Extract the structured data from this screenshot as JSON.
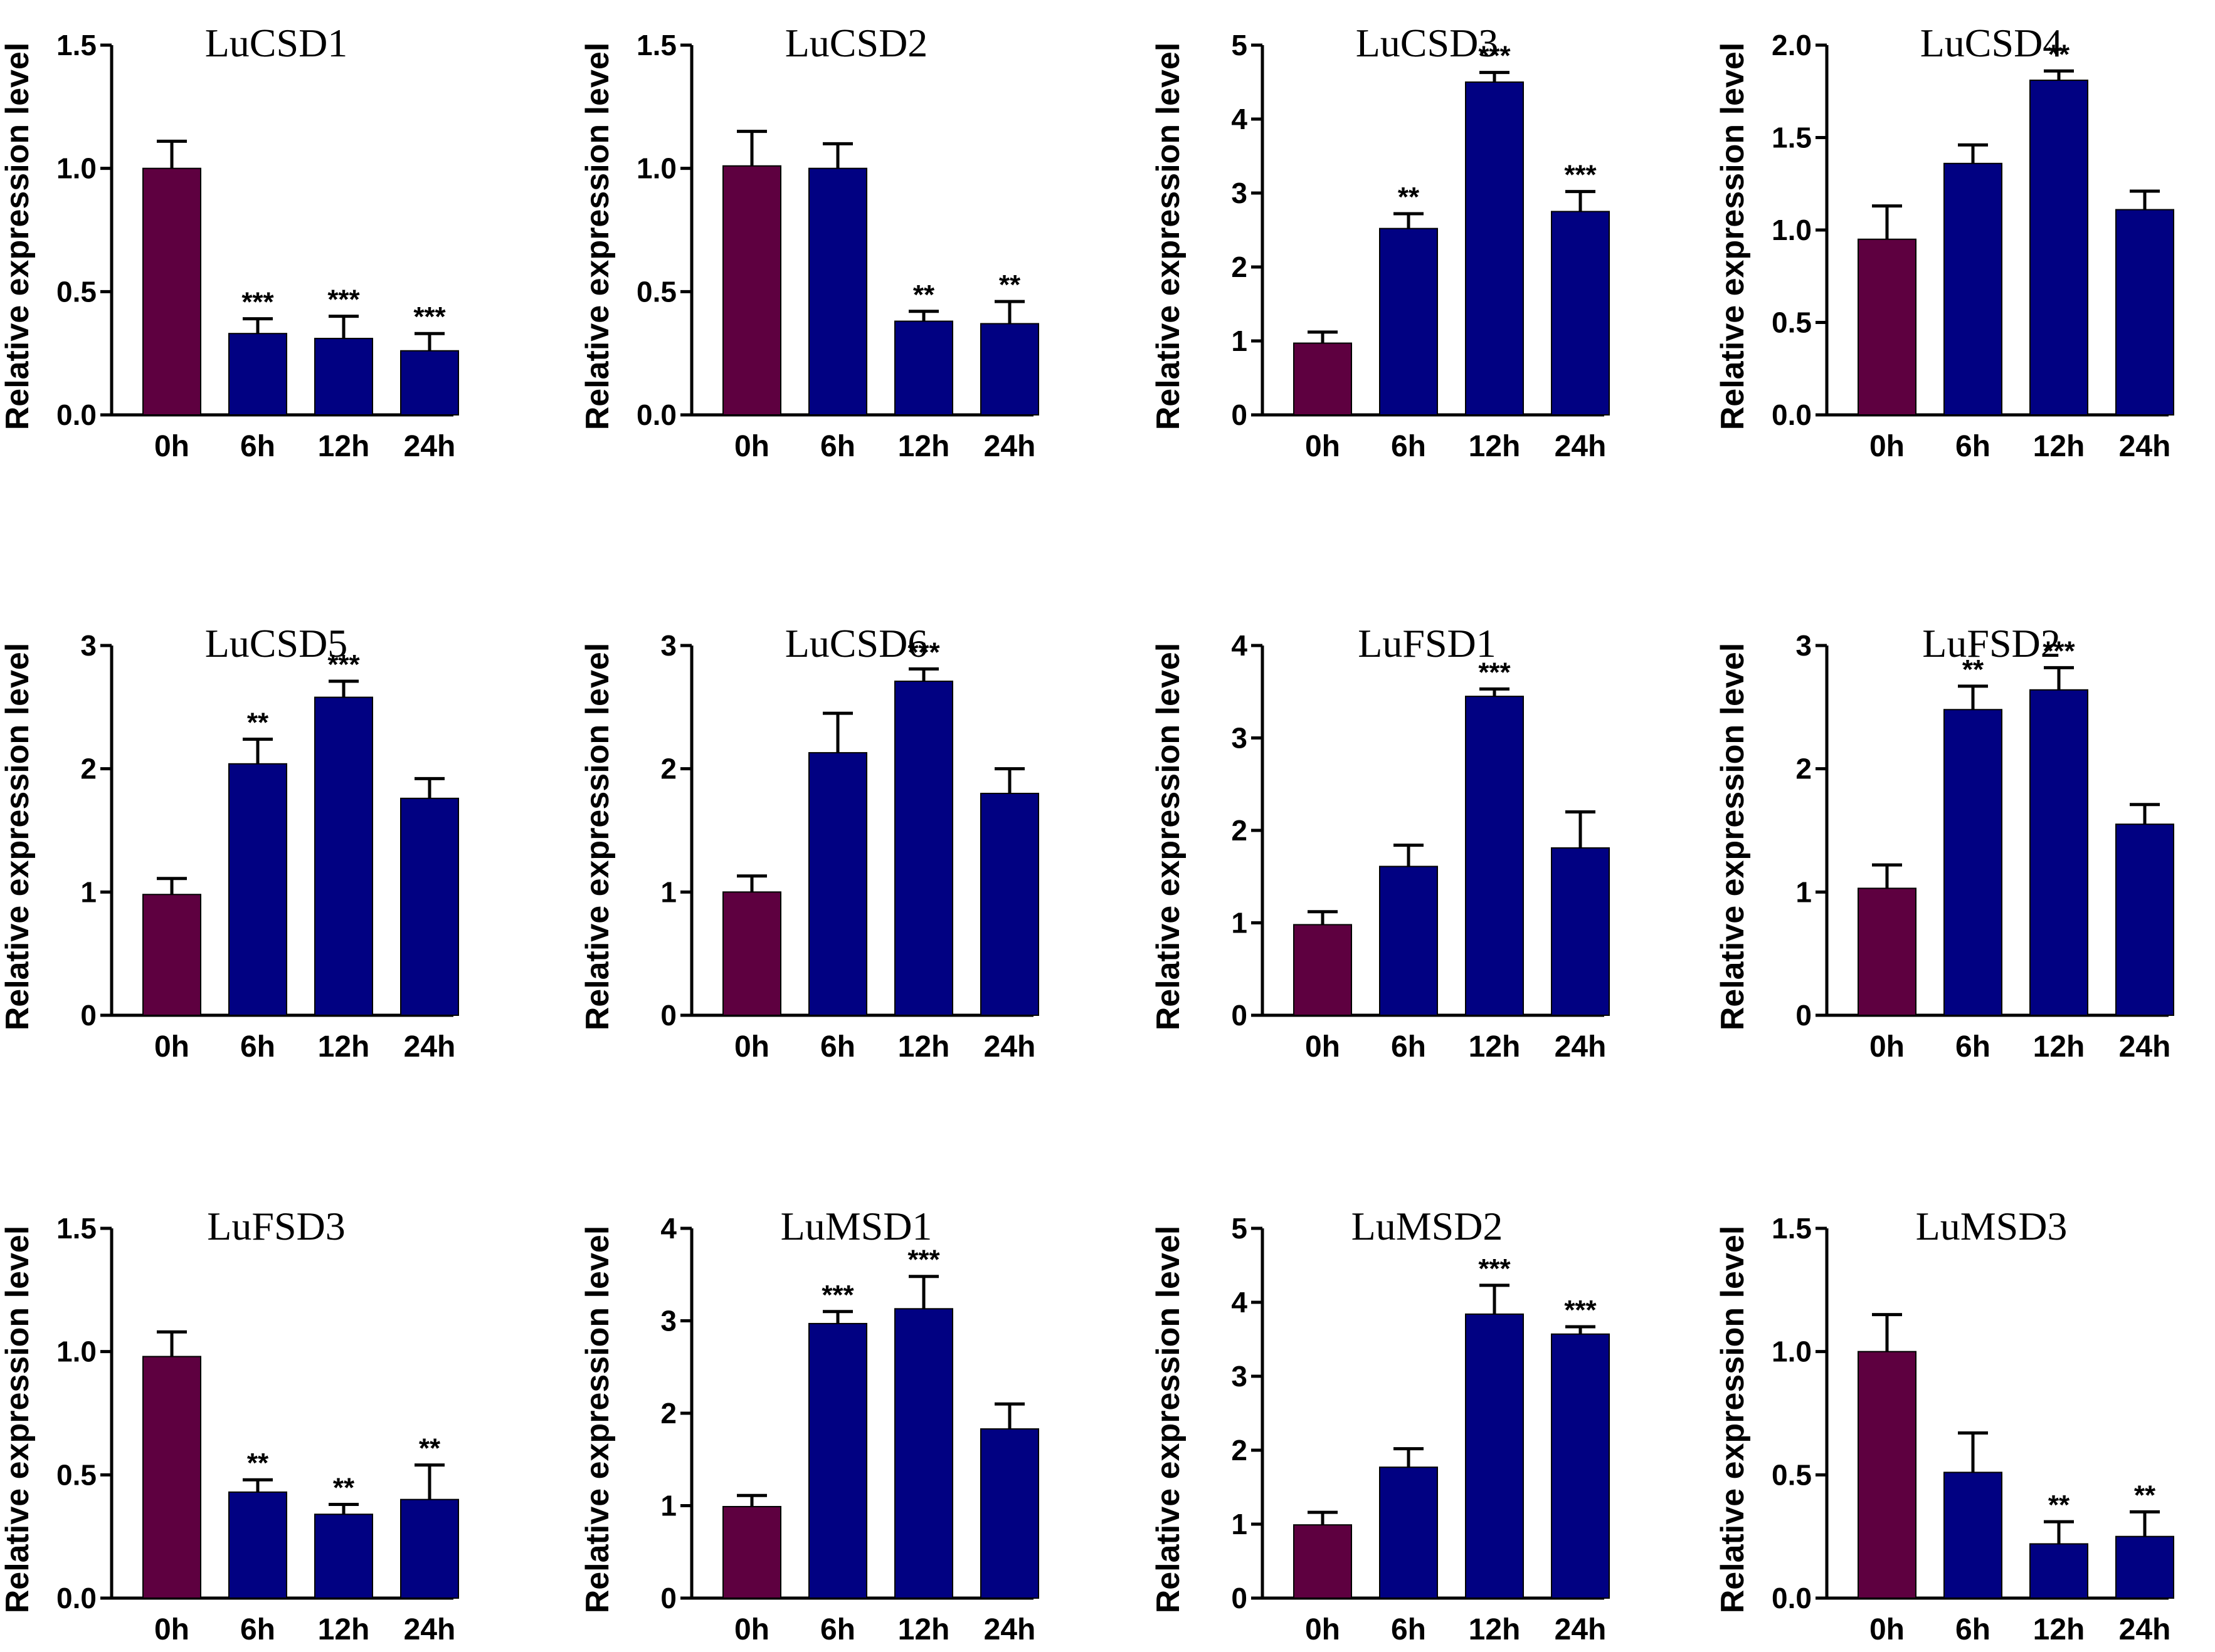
{
  "colors": {
    "control": "#5e0040",
    "treatment": "#010182",
    "axis": "#000000"
  },
  "chart_data": [
    {
      "type": "bar",
      "title": "LuCSD1",
      "ylabel": "Relative expression level",
      "xlabel": "",
      "categories": [
        "0h",
        "6h",
        "12h",
        "24h"
      ],
      "values": [
        1.0,
        0.33,
        0.31,
        0.26
      ],
      "errors": [
        0.11,
        0.06,
        0.09,
        0.07
      ],
      "significance": [
        "",
        "***",
        "***",
        "***"
      ],
      "ylim": [
        0,
        1.5
      ],
      "yticks": [
        0.0,
        0.5,
        1.0,
        1.5
      ],
      "ytick_labels": [
        "0.0",
        "0.5",
        "1.0",
        "1.5"
      ]
    },
    {
      "type": "bar",
      "title": "LuCSD2",
      "ylabel": "Relative expression level",
      "xlabel": "",
      "categories": [
        "0h",
        "6h",
        "12h",
        "24h"
      ],
      "values": [
        1.01,
        1.0,
        0.38,
        0.37
      ],
      "errors": [
        0.14,
        0.1,
        0.04,
        0.09
      ],
      "significance": [
        "",
        "",
        "**",
        "**"
      ],
      "ylim": [
        0,
        1.5
      ],
      "yticks": [
        0.0,
        0.5,
        1.0,
        1.5
      ],
      "ytick_labels": [
        "0.0",
        "0.5",
        "1.0",
        "1.5"
      ]
    },
    {
      "type": "bar",
      "title": "LuCSD3",
      "ylabel": "Relative expression level",
      "xlabel": "",
      "categories": [
        "0h",
        "6h",
        "12h",
        "24h"
      ],
      "values": [
        0.97,
        2.52,
        4.5,
        2.75
      ],
      "errors": [
        0.15,
        0.2,
        0.13,
        0.27
      ],
      "significance": [
        "",
        "**",
        "***",
        "***"
      ],
      "ylim": [
        0,
        5
      ],
      "yticks": [
        0,
        1,
        2,
        3,
        4,
        5
      ],
      "ytick_labels": [
        "0",
        "1",
        "2",
        "3",
        "4",
        "5"
      ]
    },
    {
      "type": "bar",
      "title": "LuCSD4",
      "ylabel": "Relative expression level",
      "xlabel": "",
      "categories": [
        "0h",
        "6h",
        "12h",
        "24h"
      ],
      "values": [
        0.95,
        1.36,
        1.81,
        1.11
      ],
      "errors": [
        0.18,
        0.1,
        0.05,
        0.1
      ],
      "significance": [
        "",
        "",
        "**",
        ""
      ],
      "ylim": [
        0,
        2.0
      ],
      "yticks": [
        0.0,
        0.5,
        1.0,
        1.5,
        2.0
      ],
      "ytick_labels": [
        "0.0",
        "0.5",
        "1.0",
        "1.5",
        "2.0"
      ]
    },
    {
      "type": "bar",
      "title": "LuCSD5",
      "ylabel": "Relative expression level",
      "xlabel": "",
      "categories": [
        "0h",
        "6h",
        "12h",
        "24h"
      ],
      "values": [
        0.98,
        2.04,
        2.58,
        1.76
      ],
      "errors": [
        0.13,
        0.2,
        0.13,
        0.16
      ],
      "significance": [
        "",
        "**",
        "***",
        ""
      ],
      "ylim": [
        0,
        3
      ],
      "yticks": [
        0,
        1,
        2,
        3
      ],
      "ytick_labels": [
        "0",
        "1",
        "2",
        "3"
      ]
    },
    {
      "type": "bar",
      "title": "LuCSD6",
      "ylabel": "Relative expression level",
      "xlabel": "",
      "categories": [
        "0h",
        "6h",
        "12h",
        "24h"
      ],
      "values": [
        1.0,
        2.13,
        2.71,
        1.8
      ],
      "errors": [
        0.13,
        0.32,
        0.1,
        0.2
      ],
      "significance": [
        "",
        "",
        "***",
        ""
      ],
      "ylim": [
        0,
        3
      ],
      "yticks": [
        0,
        1,
        2,
        3
      ],
      "ytick_labels": [
        "0",
        "1",
        "2",
        "3"
      ]
    },
    {
      "type": "bar",
      "title": "LuFSD1",
      "ylabel": "Relative expression level",
      "xlabel": "",
      "categories": [
        "0h",
        "6h",
        "12h",
        "24h"
      ],
      "values": [
        0.98,
        1.61,
        3.45,
        1.81
      ],
      "errors": [
        0.14,
        0.23,
        0.08,
        0.39
      ],
      "significance": [
        "",
        "",
        "***",
        ""
      ],
      "ylim": [
        0,
        4
      ],
      "yticks": [
        0,
        1,
        2,
        3,
        4
      ],
      "ytick_labels": [
        "0",
        "1",
        "2",
        "3",
        "4"
      ]
    },
    {
      "type": "bar",
      "title": "LuFSD2",
      "ylabel": "Relative expression level",
      "xlabel": "",
      "categories": [
        "0h",
        "6h",
        "12h",
        "24h"
      ],
      "values": [
        1.03,
        2.48,
        2.64,
        1.55
      ],
      "errors": [
        0.19,
        0.19,
        0.18,
        0.16
      ],
      "significance": [
        "",
        "**",
        "***",
        ""
      ],
      "ylim": [
        0,
        3
      ],
      "yticks": [
        0,
        1,
        2,
        3
      ],
      "ytick_labels": [
        "0",
        "1",
        "2",
        "3"
      ]
    },
    {
      "type": "bar",
      "title": "LuFSD3",
      "ylabel": "Relative expression level",
      "xlabel": "",
      "categories": [
        "0h",
        "6h",
        "12h",
        "24h"
      ],
      "values": [
        0.98,
        0.43,
        0.34,
        0.4
      ],
      "errors": [
        0.1,
        0.05,
        0.04,
        0.14
      ],
      "significance": [
        "",
        "**",
        "**",
        "**"
      ],
      "ylim": [
        0,
        1.5
      ],
      "yticks": [
        0.0,
        0.5,
        1.0,
        1.5
      ],
      "ytick_labels": [
        "0.0",
        "0.5",
        "1.0",
        "1.5"
      ]
    },
    {
      "type": "bar",
      "title": "LuMSD1",
      "ylabel": "Relative expression level",
      "xlabel": "",
      "categories": [
        "0h",
        "6h",
        "12h",
        "24h"
      ],
      "values": [
        0.99,
        2.97,
        3.13,
        1.83
      ],
      "errors": [
        0.12,
        0.13,
        0.35,
        0.27
      ],
      "significance": [
        "",
        "***",
        "***",
        ""
      ],
      "ylim": [
        0,
        4
      ],
      "yticks": [
        0,
        1,
        2,
        3,
        4
      ],
      "ytick_labels": [
        "0",
        "1",
        "2",
        "3",
        "4"
      ]
    },
    {
      "type": "bar",
      "title": "LuMSD2",
      "ylabel": "Relative expression level",
      "xlabel": "",
      "categories": [
        "0h",
        "6h",
        "12h",
        "24h"
      ],
      "values": [
        0.99,
        1.77,
        3.84,
        3.57
      ],
      "errors": [
        0.17,
        0.25,
        0.39,
        0.1
      ],
      "significance": [
        "",
        "",
        "***",
        "***"
      ],
      "ylim": [
        0,
        5
      ],
      "yticks": [
        0,
        1,
        2,
        3,
        4,
        5
      ],
      "ytick_labels": [
        "0",
        "1",
        "2",
        "3",
        "4",
        "5"
      ]
    },
    {
      "type": "bar",
      "title": "LuMSD3",
      "ylabel": "Relative expression level",
      "xlabel": "",
      "categories": [
        "0h",
        "6h",
        "12h",
        "24h"
      ],
      "values": [
        1.0,
        0.51,
        0.22,
        0.25
      ],
      "errors": [
        0.15,
        0.16,
        0.09,
        0.1
      ],
      "significance": [
        "",
        "",
        "**",
        "**"
      ],
      "ylim": [
        0,
        1.5
      ],
      "yticks": [
        0.0,
        0.5,
        1.0,
        1.5
      ],
      "ytick_labels": [
        "0.0",
        "0.5",
        "1.0",
        "1.5"
      ]
    }
  ]
}
